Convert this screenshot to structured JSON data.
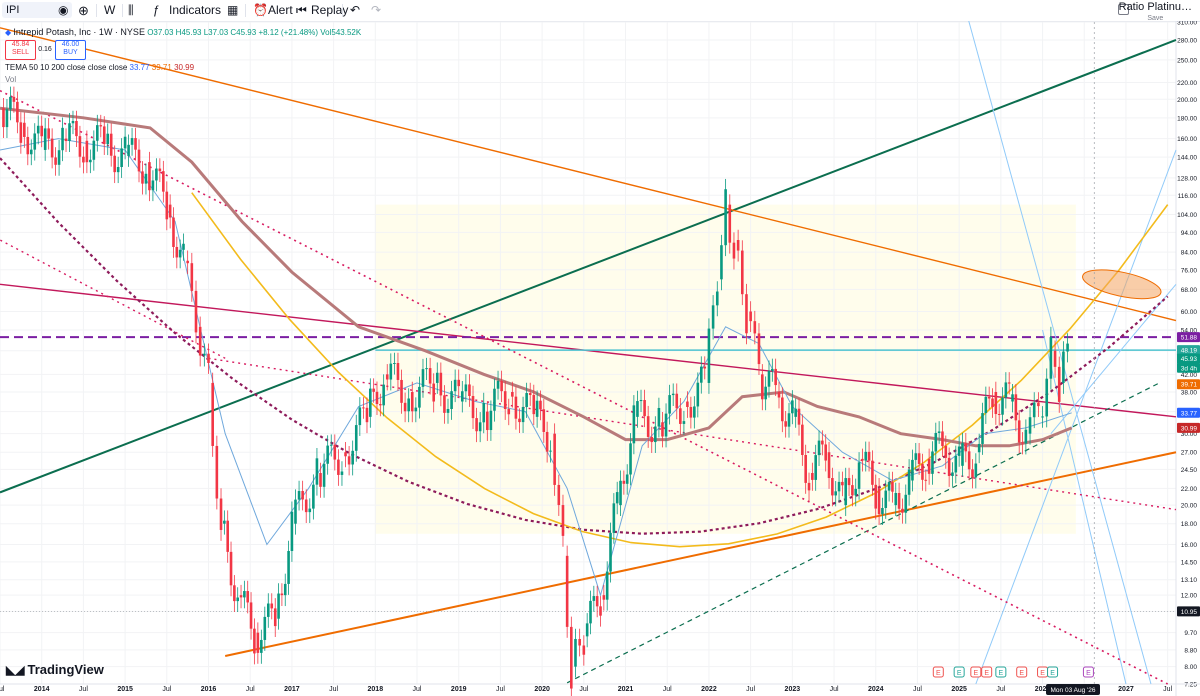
{
  "toolbar": {
    "symbol": "IPI",
    "interval": "W",
    "indicators_label": "Indicators",
    "alert_label": "Alert",
    "replay_label": "Replay",
    "ratio_label": "Ratio Platinu…",
    "ratio_sub": "Save"
  },
  "legend": {
    "title": "Intrepid Potash, Inc · 1W · NYSE",
    "open": "O37.03",
    "high": "H45.93",
    "low": "L37.03",
    "close": "C45.93",
    "change": "+8.12 (+21.48%)",
    "volume": "Vol543.52K",
    "sell_price": "45.84",
    "sell_label": "SELL",
    "spread": "0.16",
    "buy_price": "46.00",
    "buy_label": "BUY",
    "tema_label": "TEMA 50 10 200 close close close",
    "tema_v1": "33.77",
    "tema_v2": "39.71",
    "tema_v3": "30.99",
    "vol_label": "Vol"
  },
  "brand": "TradingView",
  "colors": {
    "up": "#089981",
    "down": "#f23645",
    "wma_slow": "#b87a7a",
    "ema_fast": "#6fa8dc",
    "orange": "#ef6c00",
    "green_line": "#0b6e4f",
    "magenta": "#c2185b",
    "purple_dashed": "#7b1fa2",
    "dotted_dark": "#8e1b5b",
    "cyan": "#4dc3cf",
    "yellow": "#f3bb1c",
    "blue_fan": "#90caf9"
  },
  "chart_data": {
    "type": "line",
    "title": "Intrepid Potash, Inc · 1W · NYSE",
    "scale": "log",
    "ylim": [
      7.25,
      310
    ],
    "xlim": [
      2013.5,
      2027.6
    ],
    "x_ticks": [
      "Jul",
      "2014",
      "Jul",
      "2015",
      "Jul",
      "2016",
      "Jul",
      "2017",
      "Jul",
      "2018",
      "Jul",
      "2019",
      "Jul",
      "2020",
      "Jul",
      "2021",
      "Jul",
      "2022",
      "Jul",
      "2023",
      "Jul",
      "2024",
      "Jul",
      "2025",
      "Jul",
      "2026",
      "Jul",
      "2027",
      "Jul"
    ],
    "y_ticks": [
      7.25,
      8.0,
      8.8,
      9.7,
      10.95,
      12.0,
      13.1,
      14.5,
      16.0,
      18.0,
      20.0,
      22.0,
      24.5,
      27.0,
      30.0,
      34.0,
      38.0,
      42.0,
      48.0,
      54.0,
      60.0,
      68.0,
      76.0,
      84.0,
      94.0,
      104.0,
      116.0,
      128.0,
      144.0,
      160.0,
      180.0,
      200.0,
      220.0,
      250.0,
      280.0,
      310.0
    ],
    "series": [
      {
        "name": "IPI",
        "x": [
          2013.5,
          2013.75,
          2014.0,
          2014.25,
          2014.5,
          2014.75,
          2015.0,
          2015.25,
          2015.5,
          2015.7,
          2015.85,
          2016.0,
          2016.15,
          2016.35,
          2016.55,
          2016.8,
          2017.0,
          2017.3,
          2017.6,
          2017.9,
          2018.1,
          2018.4,
          2018.7,
          2019.0,
          2019.3,
          2019.6,
          2019.9,
          2020.1,
          2020.25,
          2020.35,
          2020.5,
          2020.7,
          2020.9,
          2021.1,
          2021.4,
          2021.7,
          2021.95,
          2022.1,
          2022.2,
          2022.3,
          2022.45,
          2022.6,
          2022.8,
          2023.0,
          2023.2,
          2023.4,
          2023.6,
          2023.8,
          2024.0,
          2024.2,
          2024.4,
          2024.6,
          2024.8,
          2025.0,
          2025.2,
          2025.4,
          2025.6,
          2025.8,
          2025.95,
          2026.1,
          2026.2,
          2026.3
        ],
        "y": [
          190,
          175,
          150,
          160,
          158,
          155,
          145,
          140,
          110,
          80,
          55,
          40,
          18,
          12,
          9.7,
          10.5,
          18,
          24,
          27,
          33,
          42,
          38,
          40,
          36,
          34,
          38,
          33,
          30,
          15,
          8.0,
          9.5,
          12,
          20,
          33,
          32,
          36,
          40,
          72,
          110,
          90,
          60,
          42,
          38,
          33,
          24,
          27,
          20,
          26,
          22,
          20,
          23,
          26,
          28,
          25,
          27,
          38,
          36,
          30,
          33,
          48,
          40,
          45.93
        ]
      },
      {
        "name": "TEMA 10",
        "values": [
          33.77
        ]
      },
      {
        "name": "TEMA 50",
        "values": [
          39.71
        ]
      },
      {
        "name": "TEMA 200",
        "values": [
          30.99
        ]
      }
    ],
    "price_labels": [
      {
        "value": "51.88",
        "color": "#7b1fa2"
      },
      {
        "value": "48.19",
        "color": "#26a69a"
      },
      {
        "value": "45.93",
        "color": "#089981"
      },
      {
        "value": "3d 4h",
        "color": "#089981"
      },
      {
        "value": "39.71",
        "color": "#ef6c00"
      },
      {
        "value": "33.77",
        "color": "#2962ff"
      },
      {
        "value": "30.99",
        "color": "#c62828"
      },
      {
        "value": "10.95",
        "color": "#131722"
      }
    ],
    "crosshair_date": "Mon 03 Aug '26",
    "earnings_markers": [
      "E",
      "E",
      "E",
      "E",
      "E",
      "E",
      "E",
      "E",
      "E"
    ],
    "horizontal_levels": [
      51.88,
      48.19,
      10.95
    ],
    "grid": true
  }
}
